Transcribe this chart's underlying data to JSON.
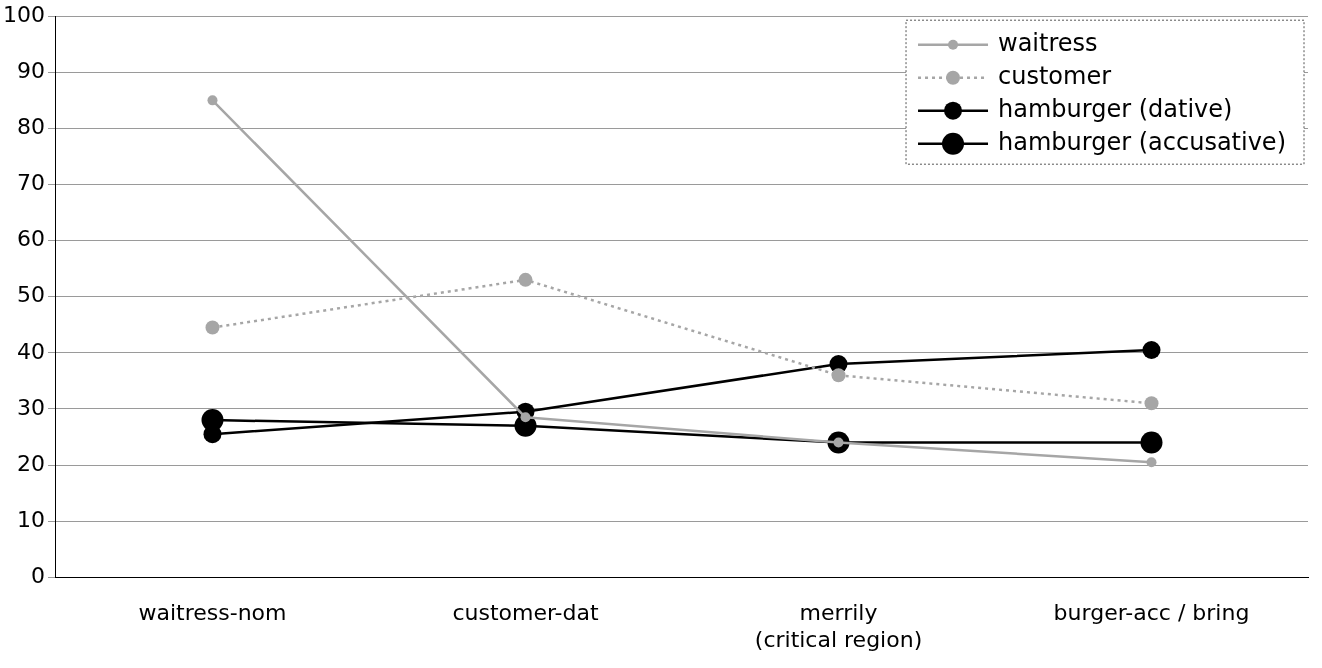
{
  "chart_data": {
    "type": "line",
    "categories": [
      "waitress-nom",
      "customer-dat",
      "merrily\n(critical region)",
      "burger-acc / bring"
    ],
    "series": [
      {
        "name": "waitress",
        "color": "#a6a6a6",
        "line_style": "solid",
        "values": [
          85,
          28.5,
          24,
          20.5
        ]
      },
      {
        "name": "customer",
        "color": "#a6a6a6",
        "line_style": "dotted",
        "values": [
          44.5,
          53,
          36,
          31
        ]
      },
      {
        "name": "hamburger (dative)",
        "color": "#000000",
        "line_style": "solid",
        "values": [
          25.5,
          29.5,
          38,
          40.5
        ]
      },
      {
        "name": "hamburger (accusative)",
        "color": "#000000",
        "line_style": "solid",
        "values": [
          28,
          27,
          24,
          24
        ]
      }
    ],
    "ylim": [
      0,
      100
    ],
    "yticks": [
      0,
      10,
      20,
      30,
      40,
      50,
      60,
      70,
      80,
      90,
      100
    ],
    "grid": "y",
    "legend": "top right",
    "marker": "circle"
  }
}
